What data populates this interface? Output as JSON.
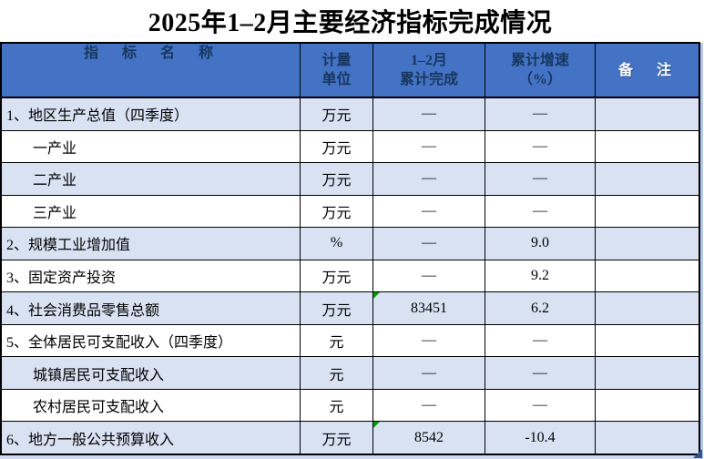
{
  "title": "2025年1–2月主要经济指标完成情况",
  "colors": {
    "header_bg": "#4472C4",
    "header_text": "#17375E",
    "remark_header_text": "#FFFFFF",
    "row_alt_bg": "#D9E2F3",
    "row_bg": "#FFFFFF",
    "border": "#000000",
    "selection_stripe": "#B7C9EA",
    "fill_handle": "#2F5597",
    "error_flag_green": "#00A000"
  },
  "header": {
    "name": "指　标　名　称",
    "unit_line1": "计量",
    "unit_line2": "单位",
    "completed_line1": "1–2月",
    "completed_line2": "累计完成",
    "growth_line1": "累计增速",
    "growth_line2": "（%）",
    "remark": "备　注"
  },
  "rows": [
    {
      "name": "1、地区生产总值（四季度）",
      "unit": "万元",
      "completed": "—",
      "growth": "—",
      "remark": ""
    },
    {
      "name": "一产业",
      "unit": "万元",
      "completed": "—",
      "growth": "—",
      "remark": ""
    },
    {
      "name": "二产业",
      "unit": "万元",
      "completed": "—",
      "growth": "—",
      "remark": ""
    },
    {
      "name": "三产业",
      "unit": "万元",
      "completed": "—",
      "growth": "—",
      "remark": ""
    },
    {
      "name": "2、规模工业增加值",
      "unit": "%",
      "completed": "—",
      "growth": "9.0",
      "remark": ""
    },
    {
      "name": "3、固定资产投资",
      "unit": "万元",
      "completed": "—",
      "growth": "9.2",
      "remark": ""
    },
    {
      "name": "4、社会消费品零售总额",
      "unit": "万元",
      "completed": "83451",
      "growth": "6.2",
      "remark": ""
    },
    {
      "name": "5、全体居民可支配收入（四季度）",
      "unit": "元",
      "completed": "—",
      "growth": "—",
      "remark": ""
    },
    {
      "name": "城镇居民可支配收入",
      "unit": "元",
      "completed": "—",
      "growth": "—",
      "remark": ""
    },
    {
      "name": "农村居民可支配收入",
      "unit": "元",
      "completed": "—",
      "growth": "—",
      "remark": ""
    },
    {
      "name": "6、地方一般公共预算收入",
      "unit": "万元",
      "completed": "8542",
      "growth": "-10.4",
      "remark": ""
    }
  ]
}
